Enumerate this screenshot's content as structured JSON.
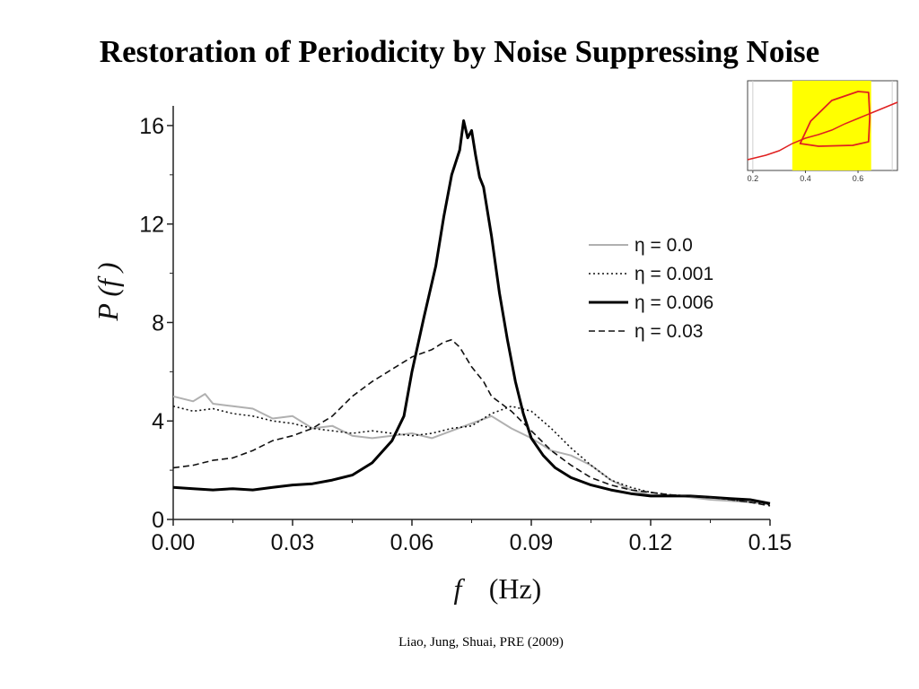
{
  "slide": {
    "title": "Restoration of Periodicity by Noise Suppressing Noise",
    "citation": "Liao, Jung, Shuai, PRE (2009)"
  },
  "chart_data": [
    {
      "type": "line",
      "xlabel_symbol": "f",
      "xlabel_unit": "(Hz)",
      "ylabel": "P (f )",
      "xlim": [
        0.0,
        0.15
      ],
      "ylim": [
        0,
        16.8
      ],
      "x_ticks": [
        "0.00",
        "0.03",
        "0.06",
        "0.09",
        "0.12",
        "0.15"
      ],
      "y_ticks": [
        "0",
        "4",
        "8",
        "12",
        "16"
      ],
      "grid": false,
      "legend_position": "right",
      "series": [
        {
          "name": "η = 0.0",
          "color": "#b0b0b0",
          "style": "solid",
          "points": [
            [
              0.0,
              5.0
            ],
            [
              0.005,
              4.8
            ],
            [
              0.008,
              5.1
            ],
            [
              0.01,
              4.7
            ],
            [
              0.015,
              4.6
            ],
            [
              0.02,
              4.5
            ],
            [
              0.025,
              4.1
            ],
            [
              0.03,
              4.2
            ],
            [
              0.035,
              3.7
            ],
            [
              0.04,
              3.8
            ],
            [
              0.045,
              3.4
            ],
            [
              0.05,
              3.3
            ],
            [
              0.055,
              3.4
            ],
            [
              0.06,
              3.5
            ],
            [
              0.065,
              3.3
            ],
            [
              0.07,
              3.6
            ],
            [
              0.075,
              3.9
            ],
            [
              0.08,
              4.2
            ],
            [
              0.085,
              3.7
            ],
            [
              0.09,
              3.3
            ],
            [
              0.095,
              2.8
            ],
            [
              0.1,
              2.6
            ],
            [
              0.105,
              2.2
            ],
            [
              0.11,
              1.6
            ],
            [
              0.115,
              1.2
            ],
            [
              0.12,
              1.0
            ],
            [
              0.125,
              1.0
            ],
            [
              0.13,
              0.9
            ],
            [
              0.135,
              0.8
            ],
            [
              0.14,
              0.75
            ],
            [
              0.145,
              0.7
            ],
            [
              0.15,
              0.6
            ]
          ]
        },
        {
          "name": "η = 0.001",
          "color": "#111111",
          "style": "dotted",
          "points": [
            [
              0.0,
              4.6
            ],
            [
              0.005,
              4.4
            ],
            [
              0.01,
              4.5
            ],
            [
              0.015,
              4.3
            ],
            [
              0.02,
              4.2
            ],
            [
              0.025,
              4.0
            ],
            [
              0.03,
              3.9
            ],
            [
              0.035,
              3.7
            ],
            [
              0.04,
              3.6
            ],
            [
              0.045,
              3.5
            ],
            [
              0.05,
              3.6
            ],
            [
              0.055,
              3.5
            ],
            [
              0.06,
              3.4
            ],
            [
              0.065,
              3.5
            ],
            [
              0.07,
              3.7
            ],
            [
              0.075,
              3.8
            ],
            [
              0.08,
              4.3
            ],
            [
              0.085,
              4.6
            ],
            [
              0.09,
              4.4
            ],
            [
              0.095,
              3.7
            ],
            [
              0.1,
              2.9
            ],
            [
              0.105,
              2.2
            ],
            [
              0.11,
              1.6
            ],
            [
              0.115,
              1.3
            ],
            [
              0.12,
              1.1
            ],
            [
              0.125,
              1.0
            ],
            [
              0.13,
              0.95
            ],
            [
              0.135,
              0.9
            ],
            [
              0.14,
              0.8
            ],
            [
              0.145,
              0.7
            ],
            [
              0.15,
              0.6
            ]
          ]
        },
        {
          "name": "η = 0.006",
          "color": "#000000",
          "style": "solid-thick",
          "points": [
            [
              0.0,
              1.3
            ],
            [
              0.005,
              1.25
            ],
            [
              0.01,
              1.2
            ],
            [
              0.015,
              1.25
            ],
            [
              0.02,
              1.2
            ],
            [
              0.025,
              1.3
            ],
            [
              0.03,
              1.4
            ],
            [
              0.035,
              1.45
            ],
            [
              0.04,
              1.6
            ],
            [
              0.045,
              1.8
            ],
            [
              0.05,
              2.3
            ],
            [
              0.055,
              3.2
            ],
            [
              0.058,
              4.2
            ],
            [
              0.06,
              6.0
            ],
            [
              0.063,
              8.2
            ],
            [
              0.066,
              10.3
            ],
            [
              0.068,
              12.3
            ],
            [
              0.07,
              14.0
            ],
            [
              0.072,
              15.0
            ],
            [
              0.073,
              16.2
            ],
            [
              0.074,
              15.5
            ],
            [
              0.075,
              15.8
            ],
            [
              0.076,
              14.8
            ],
            [
              0.077,
              13.9
            ],
            [
              0.078,
              13.5
            ],
            [
              0.08,
              11.5
            ],
            [
              0.082,
              9.2
            ],
            [
              0.084,
              7.3
            ],
            [
              0.086,
              5.6
            ],
            [
              0.088,
              4.3
            ],
            [
              0.09,
              3.3
            ],
            [
              0.093,
              2.6
            ],
            [
              0.096,
              2.1
            ],
            [
              0.1,
              1.7
            ],
            [
              0.105,
              1.4
            ],
            [
              0.11,
              1.2
            ],
            [
              0.115,
              1.05
            ],
            [
              0.12,
              0.95
            ],
            [
              0.125,
              0.95
            ],
            [
              0.13,
              0.95
            ],
            [
              0.135,
              0.9
            ],
            [
              0.14,
              0.85
            ],
            [
              0.145,
              0.8
            ],
            [
              0.15,
              0.65
            ]
          ]
        },
        {
          "name": "η = 0.03",
          "color": "#111111",
          "style": "dashed",
          "points": [
            [
              0.0,
              2.1
            ],
            [
              0.005,
              2.2
            ],
            [
              0.01,
              2.4
            ],
            [
              0.015,
              2.5
            ],
            [
              0.02,
              2.8
            ],
            [
              0.025,
              3.2
            ],
            [
              0.03,
              3.4
            ],
            [
              0.035,
              3.7
            ],
            [
              0.04,
              4.2
            ],
            [
              0.045,
              5.0
            ],
            [
              0.05,
              5.6
            ],
            [
              0.055,
              6.1
            ],
            [
              0.06,
              6.6
            ],
            [
              0.065,
              6.9
            ],
            [
              0.068,
              7.2
            ],
            [
              0.07,
              7.3
            ],
            [
              0.072,
              7.0
            ],
            [
              0.075,
              6.2
            ],
            [
              0.078,
              5.6
            ],
            [
              0.08,
              5.0
            ],
            [
              0.085,
              4.4
            ],
            [
              0.09,
              3.6
            ],
            [
              0.095,
              2.8
            ],
            [
              0.1,
              2.2
            ],
            [
              0.105,
              1.7
            ],
            [
              0.11,
              1.4
            ],
            [
              0.115,
              1.2
            ],
            [
              0.12,
              1.1
            ],
            [
              0.125,
              1.0
            ],
            [
              0.13,
              0.95
            ],
            [
              0.135,
              0.9
            ],
            [
              0.14,
              0.8
            ],
            [
              0.145,
              0.7
            ],
            [
              0.15,
              0.55
            ]
          ]
        }
      ]
    },
    {
      "type": "line",
      "xlim": [
        0.18,
        0.75
      ],
      "x_ticks": [
        "0.2",
        "0.4",
        "0.6"
      ],
      "highlight_band": {
        "x_from": 0.35,
        "x_to": 0.65,
        "color": "#ffff00"
      },
      "series": [
        {
          "color": "#e02020",
          "style": "solid",
          "points": [
            [
              0.18,
              0.12
            ],
            [
              0.25,
              0.17
            ],
            [
              0.3,
              0.22
            ],
            [
              0.35,
              0.3
            ],
            [
              0.4,
              0.36
            ],
            [
              0.45,
              0.4
            ],
            [
              0.5,
              0.45
            ],
            [
              0.55,
              0.52
            ],
            [
              0.6,
              0.58
            ],
            [
              0.65,
              0.64
            ],
            [
              0.7,
              0.7
            ],
            [
              0.75,
              0.76
            ]
          ]
        }
      ],
      "loop_points": [
        [
          0.38,
          0.3
        ],
        [
          0.42,
          0.55
        ],
        [
          0.5,
          0.78
        ],
        [
          0.6,
          0.88
        ],
        [
          0.64,
          0.87
        ],
        [
          0.645,
          0.6
        ],
        [
          0.64,
          0.32
        ],
        [
          0.58,
          0.28
        ],
        [
          0.45,
          0.27
        ],
        [
          0.38,
          0.3
        ]
      ]
    }
  ]
}
